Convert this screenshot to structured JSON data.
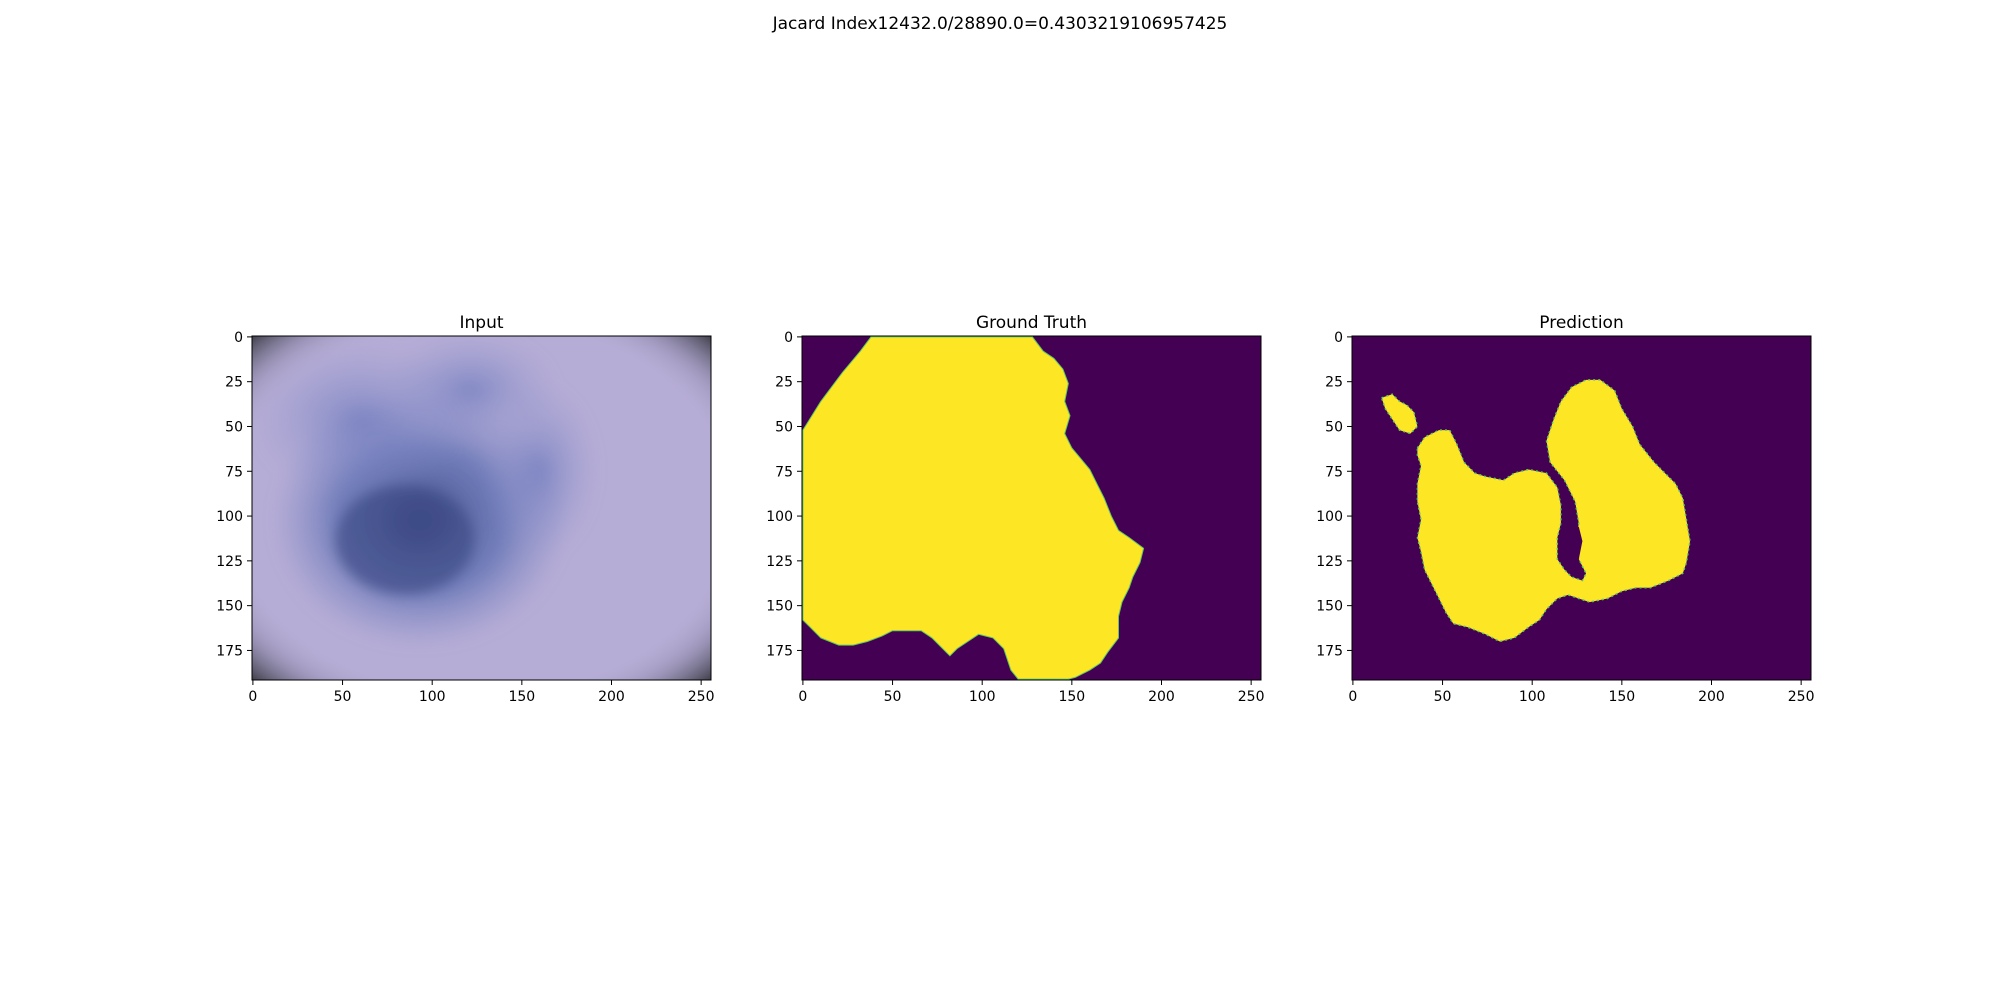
{
  "figure": {
    "title": "Jacard Index12432.0/28890.0=0.4303219106957425"
  },
  "colors": {
    "background": "#440154",
    "foreground": "#fde725",
    "edge": "#5ec962",
    "input_base": "#b8aed6",
    "input_lesion": "#5a6db0",
    "input_dark": "#3c4a86",
    "vignette": "#2d2d33"
  },
  "chart_data": [
    {
      "type": "image",
      "title": "Input",
      "content": "dermoscopy-photo",
      "x_ticks": [
        "0",
        "50",
        "100",
        "150",
        "200",
        "250"
      ],
      "y_ticks": [
        "0",
        "25",
        "50",
        "75",
        "100",
        "125",
        "150",
        "175"
      ],
      "xlim": [
        -0.5,
        255.5
      ],
      "ylim": [
        191.5,
        -0.5
      ]
    },
    {
      "type": "image",
      "title": "Ground Truth",
      "content": "binary-mask",
      "x_ticks": [
        "0",
        "50",
        "100",
        "150",
        "200",
        "250"
      ],
      "y_ticks": [
        "0",
        "25",
        "50",
        "75",
        "100",
        "125",
        "150",
        "175"
      ],
      "xlim": [
        -0.5,
        255.5
      ],
      "ylim": [
        191.5,
        -0.5
      ],
      "mask_outline": [
        [
          0,
          52
        ],
        [
          10,
          36
        ],
        [
          22,
          20
        ],
        [
          32,
          8
        ],
        [
          38,
          0
        ],
        [
          128,
          0
        ],
        [
          134,
          8
        ],
        [
          140,
          12
        ],
        [
          145,
          18
        ],
        [
          148,
          26
        ],
        [
          146,
          36
        ],
        [
          149,
          44
        ],
        [
          146,
          54
        ],
        [
          150,
          62
        ],
        [
          155,
          68
        ],
        [
          160,
          74
        ],
        [
          164,
          82
        ],
        [
          168,
          90
        ],
        [
          172,
          100
        ],
        [
          176,
          108
        ],
        [
          182,
          112
        ],
        [
          190,
          118
        ],
        [
          188,
          126
        ],
        [
          184,
          134
        ],
        [
          182,
          140
        ],
        [
          178,
          148
        ],
        [
          176,
          156
        ],
        [
          176,
          168
        ],
        [
          170,
          176
        ],
        [
          166,
          182
        ],
        [
          160,
          186
        ],
        [
          152,
          190
        ],
        [
          148,
          191
        ],
        [
          120,
          191
        ],
        [
          116,
          186
        ],
        [
          112,
          174
        ],
        [
          106,
          168
        ],
        [
          98,
          166
        ],
        [
          92,
          170
        ],
        [
          86,
          174
        ],
        [
          82,
          178
        ],
        [
          78,
          174
        ],
        [
          72,
          168
        ],
        [
          66,
          164
        ],
        [
          58,
          164
        ],
        [
          50,
          164
        ],
        [
          44,
          167
        ],
        [
          36,
          170
        ],
        [
          28,
          172
        ],
        [
          20,
          172
        ],
        [
          10,
          168
        ],
        [
          4,
          162
        ],
        [
          0,
          158
        ]
      ]
    },
    {
      "type": "image",
      "title": "Prediction",
      "content": "binary-mask",
      "x_ticks": [
        "0",
        "50",
        "100",
        "150",
        "200",
        "250"
      ],
      "y_ticks": [
        "0",
        "25",
        "50",
        "75",
        "100",
        "125",
        "150",
        "175"
      ],
      "xlim": [
        -0.5,
        255.5
      ],
      "ylim": [
        191.5,
        -0.5
      ],
      "mask_blobs": [
        [
          [
            16,
            34
          ],
          [
            22,
            32
          ],
          [
            26,
            36
          ],
          [
            30,
            38
          ],
          [
            34,
            42
          ],
          [
            36,
            50
          ],
          [
            32,
            54
          ],
          [
            26,
            52
          ],
          [
            22,
            46
          ],
          [
            18,
            40
          ]
        ],
        [
          [
            36,
            62
          ],
          [
            40,
            56
          ],
          [
            48,
            52
          ],
          [
            54,
            52
          ],
          [
            58,
            60
          ],
          [
            62,
            70
          ],
          [
            68,
            76
          ],
          [
            74,
            78
          ],
          [
            84,
            80
          ],
          [
            90,
            76
          ],
          [
            98,
            74
          ],
          [
            108,
            76
          ],
          [
            114,
            84
          ],
          [
            116,
            94
          ],
          [
            116,
            104
          ],
          [
            114,
            112
          ],
          [
            114,
            124
          ],
          [
            118,
            130
          ],
          [
            122,
            134
          ],
          [
            128,
            136
          ],
          [
            130,
            132
          ],
          [
            126,
            124
          ],
          [
            124,
            116
          ],
          [
            126,
            104
          ],
          [
            124,
            92
          ],
          [
            118,
            80
          ],
          [
            110,
            70
          ],
          [
            108,
            58
          ],
          [
            112,
            46
          ],
          [
            116,
            36
          ],
          [
            122,
            28
          ],
          [
            130,
            24
          ],
          [
            138,
            24
          ],
          [
            146,
            30
          ],
          [
            150,
            40
          ],
          [
            156,
            50
          ],
          [
            160,
            60
          ],
          [
            168,
            70
          ],
          [
            174,
            76
          ],
          [
            180,
            82
          ],
          [
            184,
            90
          ],
          [
            186,
            102
          ],
          [
            188,
            114
          ],
          [
            186,
            126
          ],
          [
            184,
            132
          ],
          [
            176,
            136
          ],
          [
            166,
            140
          ],
          [
            158,
            140
          ],
          [
            150,
            142
          ],
          [
            142,
            146
          ],
          [
            132,
            148
          ],
          [
            126,
            146
          ],
          [
            120,
            144
          ],
          [
            114,
            146
          ],
          [
            108,
            152
          ],
          [
            104,
            158
          ],
          [
            98,
            162
          ],
          [
            90,
            168
          ],
          [
            82,
            170
          ],
          [
            74,
            166
          ],
          [
            64,
            162
          ],
          [
            56,
            160
          ],
          [
            52,
            154
          ],
          [
            48,
            146
          ],
          [
            44,
            138
          ],
          [
            40,
            130
          ],
          [
            38,
            120
          ],
          [
            36,
            112
          ],
          [
            38,
            102
          ],
          [
            36,
            92
          ],
          [
            36,
            82
          ],
          [
            38,
            72
          ],
          [
            36,
            66
          ]
        ]
      ],
      "mask_holes": [
        [
          [
            120,
            108
          ],
          [
            126,
            106
          ],
          [
            128,
            114
          ],
          [
            126,
            124
          ],
          [
            120,
            126
          ],
          [
            116,
            118
          ]
        ]
      ]
    }
  ]
}
